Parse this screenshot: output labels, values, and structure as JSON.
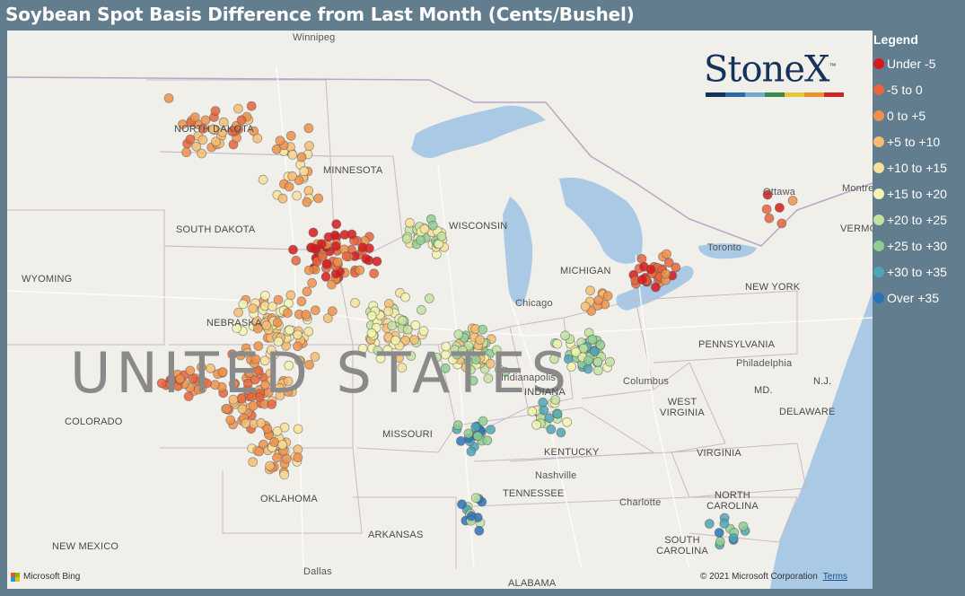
{
  "title": "Soybean Spot Basis Difference from Last Month (Cents/Bushel)",
  "legend": {
    "title": "Legend",
    "items": [
      {
        "label": "Under -5",
        "color": "#d7191c"
      },
      {
        "label": "-5 to 0",
        "color": "#e8643c"
      },
      {
        "label": "0 to +5",
        "color": "#f0904a"
      },
      {
        "label": "+5 to +10",
        "color": "#f6bd72"
      },
      {
        "label": "+10 to +15",
        "color": "#f9e09b"
      },
      {
        "label": "+15 to +20",
        "color": "#f3f5b0"
      },
      {
        "label": "+20 to +25",
        "color": "#c2e3a0"
      },
      {
        "label": "+25 to +30",
        "color": "#8fcf92"
      },
      {
        "label": "+30 to +35",
        "color": "#4ea6b5"
      },
      {
        "label": "Over +35",
        "color": "#2b73b8"
      }
    ]
  },
  "logo": {
    "text": "StoneX",
    "tm": "™",
    "stripe_colors": [
      "#14325a",
      "#2f6aa8",
      "#74a8cf",
      "#3a8a4a",
      "#e7c63a",
      "#e8922b",
      "#c8262c"
    ]
  },
  "map": {
    "country_label": "UNITED STATES",
    "states": [
      "NORTH DAKOTA",
      "SOUTH DAKOTA",
      "MINNESOTA",
      "WYOMING",
      "NEBRASKA",
      "COLORADO",
      "MISSOURI",
      "KENTUCKY",
      "TENNESSEE",
      "OKLAHOMA",
      "ARKANSAS",
      "NEW MEXICO",
      "WEST VIRGINIA",
      "VIRGINIA",
      "NORTH CAROLINA",
      "SOUTH CAROLINA",
      "PENNSYLVANIA",
      "NEW YORK",
      "MICHIGAN",
      "WISCONSIN",
      "INDIANA",
      "DELAWARE",
      "MD.",
      "N.J.",
      "VERMONT",
      "ALABAMA"
    ],
    "cities": [
      "Winnipeg",
      "Chicago",
      "Toronto",
      "Ottawa",
      "Montreal",
      "Columbus",
      "Philadelphia",
      "Nashville",
      "Charlotte",
      "Dallas",
      "Indianapolis"
    ]
  },
  "attribution": {
    "provider": "Microsoft Bing",
    "copyright": "© 2021 Microsoft Corporation",
    "terms": "Terms"
  }
}
